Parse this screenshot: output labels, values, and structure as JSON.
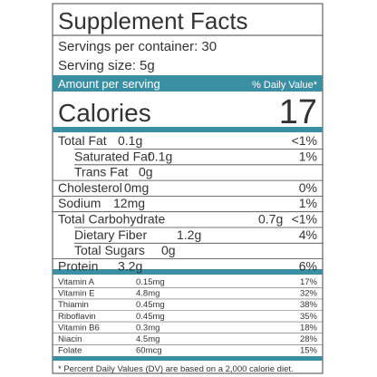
{
  "title": "Supplement Facts",
  "servings": "Servings per container: 30",
  "serving_size": "Serving size: 5g",
  "header": {
    "left": "Amount per serving",
    "right": "% Daily Value*"
  },
  "calories": {
    "label": "Calories",
    "value": "17"
  },
  "nutrients": [
    [
      "Total Fat",
      "0.1g",
      "<1%"
    ],
    [
      "Saturated Fat",
      "0.1g",
      "1%"
    ],
    [
      "Trans Fat",
      "0g",
      ""
    ],
    [
      "Cholesterol",
      "0mg",
      "0%"
    ],
    [
      "Sodium",
      "12mg",
      "1%"
    ],
    [
      "Total Carbohydrate",
      "0.7g",
      "<1%"
    ],
    [
      "Dietary Fiber",
      "1.2g",
      "4%"
    ],
    [
      "Total Sugars",
      "0g",
      ""
    ],
    [
      "Protein",
      "3.2g",
      "6%"
    ]
  ],
  "vitamins": [
    [
      "Vitamin A",
      "0.15mg",
      "17%"
    ],
    [
      "Vitamin E",
      "4.8mg",
      "32%"
    ],
    [
      "Thiamin",
      "0.45mg",
      "38%"
    ],
    [
      "Riboflavin",
      "0.45mg",
      "35%"
    ],
    [
      "Vitamin B6",
      "0.3mg",
      "18%"
    ],
    [
      "Niacin",
      "4.5mg",
      "28%"
    ],
    [
      "Folate",
      "60mcg",
      "15%"
    ]
  ],
  "footnote": "* Percent Daily Values (DV) are based on a 2,000 calorie diet."
}
